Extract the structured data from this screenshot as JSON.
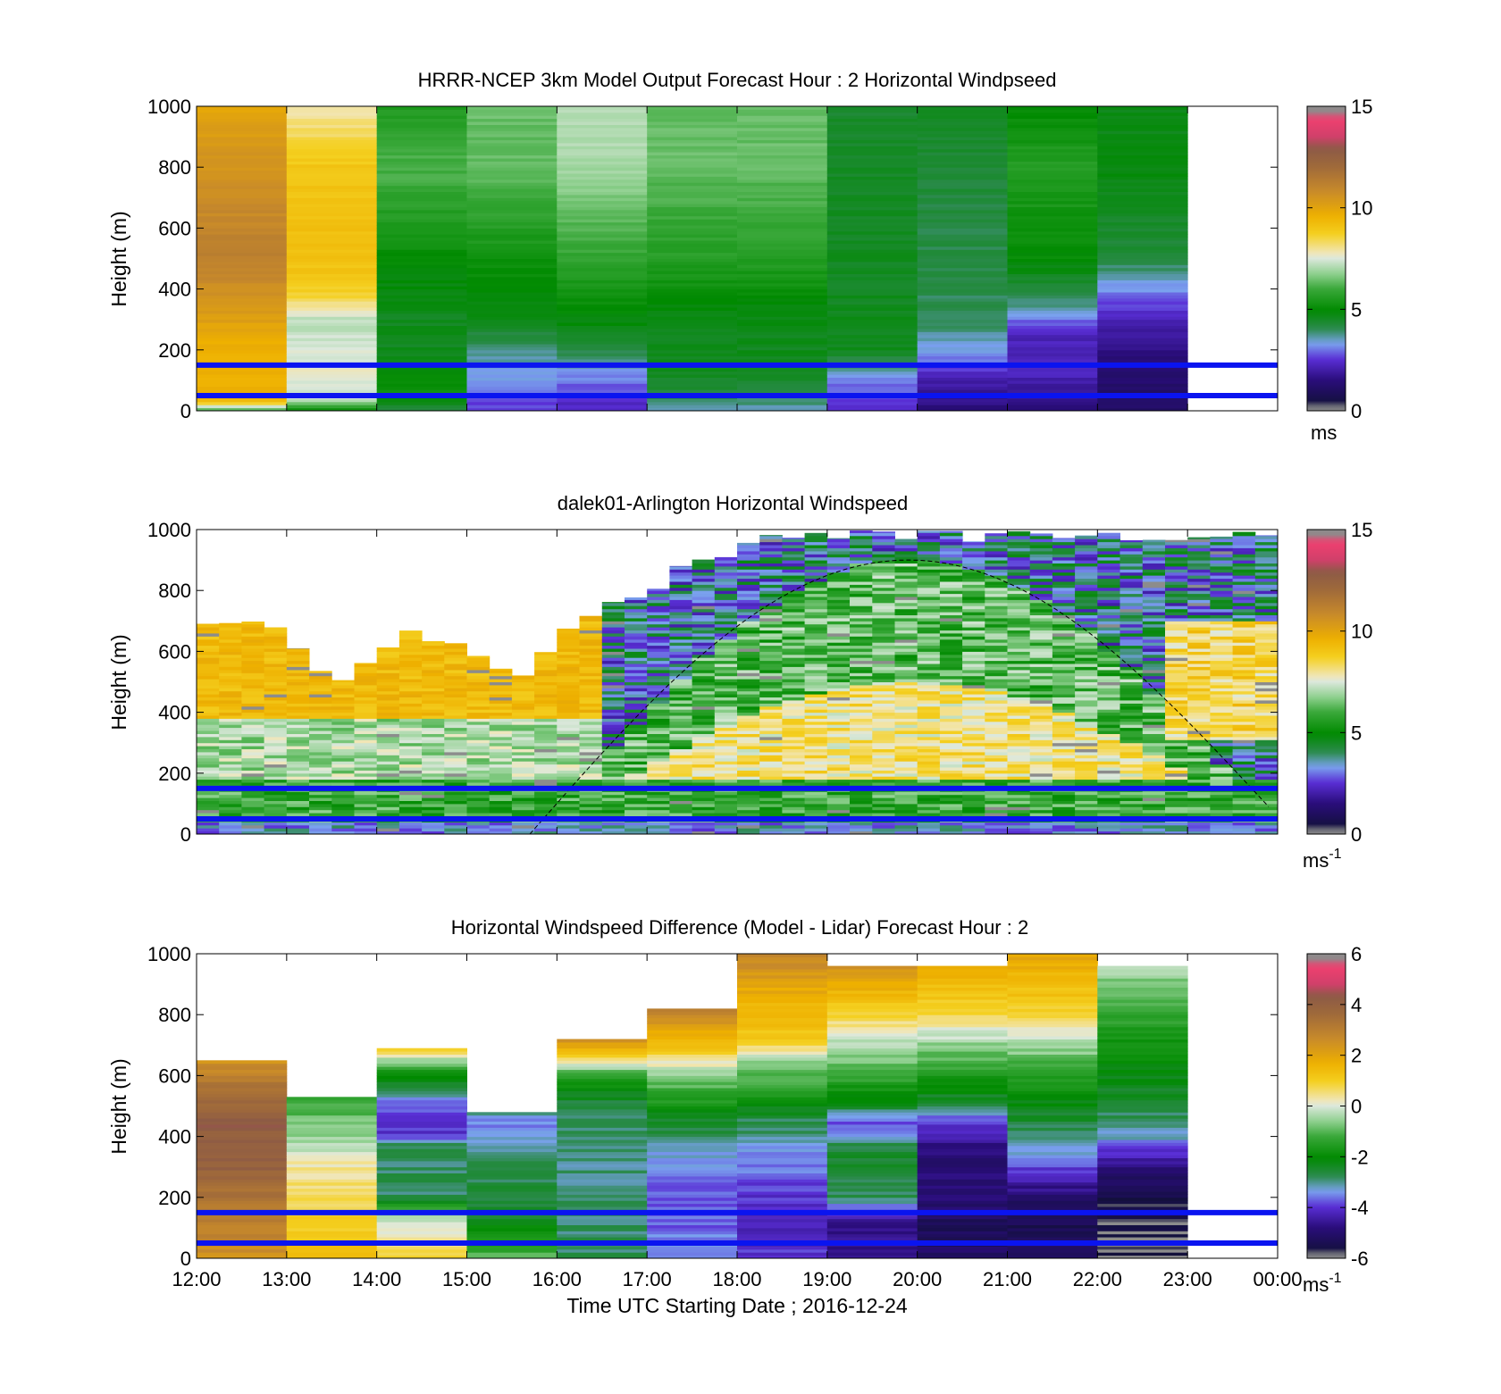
{
  "figure": {
    "xlabel": "Time UTC  Starting Date ; 2016-12-24",
    "x_tick_labels": [
      "12:00",
      "13:00",
      "14:00",
      "15:00",
      "16:00",
      "17:00",
      "18:00",
      "19:00",
      "20:00",
      "21:00",
      "22:00",
      "23:00",
      "00:00"
    ]
  },
  "colors": {
    "reference_lines": "#0a14f0",
    "missing": "#8c8c8c"
  },
  "chart_data": [
    {
      "type": "heatmap",
      "title": "HRRR-NCEP 3km Model Output   Forecast Hour : 2 Horizontal Windpseed",
      "ylabel": "Height (m)",
      "y_tick_labels": [
        "0",
        "200",
        "400",
        "600",
        "800",
        "1000"
      ],
      "ylim": [
        0,
        1000
      ],
      "xlim_hours": [
        12,
        24
      ],
      "colorbar": {
        "ticks": [
          "0",
          "5",
          "10",
          "15"
        ],
        "range": [
          0,
          15
        ],
        "unit": "ms"
      },
      "reference_heights_m": [
        150,
        50
      ],
      "columns": [
        {
          "t": 12,
          "profile": [
            [
              0,
              6
            ],
            [
              35,
              9.5
            ],
            [
              200,
              9.6
            ],
            [
              500,
              11.2
            ],
            [
              1000,
              10
            ]
          ]
        },
        {
          "t": 13,
          "profile": [
            [
              0,
              5
            ],
            [
              40,
              7.4
            ],
            [
              120,
              7.6
            ],
            [
              300,
              7.2
            ],
            [
              380,
              8.6
            ],
            [
              500,
              9.2
            ],
            [
              800,
              9
            ],
            [
              1000,
              7.8
            ]
          ]
        },
        {
          "t": 14,
          "profile": [
            [
              0,
              4
            ],
            [
              60,
              5.2
            ],
            [
              200,
              4.6
            ],
            [
              300,
              4.6
            ],
            [
              500,
              5
            ],
            [
              800,
              6.2
            ],
            [
              1000,
              5.5
            ]
          ]
        },
        {
          "t": 15,
          "profile": [
            [
              0,
              2.5
            ],
            [
              60,
              3
            ],
            [
              200,
              3.8
            ],
            [
              300,
              4.6
            ],
            [
              500,
              5.2
            ],
            [
              800,
              6.4
            ],
            [
              1000,
              6.4
            ]
          ]
        },
        {
          "t": 16,
          "profile": [
            [
              0,
              2.2
            ],
            [
              100,
              3
            ],
            [
              250,
              4.6
            ],
            [
              500,
              5.8
            ],
            [
              800,
              7
            ],
            [
              1000,
              7.2
            ]
          ]
        },
        {
          "t": 17,
          "profile": [
            [
              0,
              3.5
            ],
            [
              100,
              4.5
            ],
            [
              300,
              4.7
            ],
            [
              500,
              5.6
            ],
            [
              800,
              6.4
            ],
            [
              1000,
              6.4
            ]
          ]
        },
        {
          "t": 18,
          "profile": [
            [
              0,
              3.5
            ],
            [
              100,
              4.5
            ],
            [
              300,
              4.7
            ],
            [
              500,
              5.6
            ],
            [
              800,
              6.4
            ],
            [
              1000,
              6.4
            ]
          ]
        },
        {
          "t": 19,
          "profile": [
            [
              0,
              2.5
            ],
            [
              100,
              3
            ],
            [
              200,
              4.6
            ],
            [
              600,
              4.5
            ],
            [
              1000,
              4.4
            ]
          ]
        },
        {
          "t": 20,
          "profile": [
            [
              0,
              1.5
            ],
            [
              100,
              2
            ],
            [
              180,
              3.2
            ],
            [
              300,
              4
            ],
            [
              700,
              4.2
            ],
            [
              1000,
              4.5
            ]
          ]
        },
        {
          "t": 21,
          "profile": [
            [
              0,
              1.5
            ],
            [
              120,
              2.2
            ],
            [
              250,
              2.2
            ],
            [
              350,
              3.8
            ],
            [
              500,
              5
            ],
            [
              800,
              5.6
            ],
            [
              1000,
              5
            ]
          ]
        },
        {
          "t": 22,
          "profile": [
            [
              0,
              1.2
            ],
            [
              150,
              1.3
            ],
            [
              300,
              2.2
            ],
            [
              400,
              3.2
            ],
            [
              500,
              4.2
            ],
            [
              800,
              4.8
            ],
            [
              1000,
              4.6
            ]
          ]
        }
      ],
      "missing_from_hour": 23
    },
    {
      "type": "heatmap",
      "title": "dalek01-Arlington  Horizontal Windspeed",
      "ylabel": "Height (m)",
      "y_tick_labels": [
        "0",
        "200",
        "400",
        "600",
        "800",
        "1000"
      ],
      "ylim": [
        0,
        1000
      ],
      "xlim_hours": [
        12,
        24
      ],
      "colorbar": {
        "ticks": [
          "0",
          "5",
          "10",
          "15"
        ],
        "range": [
          0,
          15
        ],
        "unit": "ms",
        "unit_sup": "-1"
      },
      "reference_heights_m": [
        150,
        50
      ],
      "mixing_layer_curve": {
        "start_hour": 15.7,
        "peak_hour": 19.9,
        "end_hour": 23.9,
        "start_height_m": 0,
        "peak_height_m": 900,
        "end_height_m": 90
      },
      "top_of_data_m": [
        [
          12.0,
          700
        ],
        [
          12.3,
          730
        ],
        [
          12.6,
          720
        ],
        [
          13.0,
          650
        ],
        [
          13.3,
          560
        ],
        [
          13.6,
          520
        ],
        [
          14.0,
          650
        ],
        [
          14.3,
          700
        ],
        [
          14.6,
          650
        ],
        [
          14.9,
          620
        ],
        [
          15.2,
          560
        ],
        [
          15.5,
          540
        ],
        [
          15.8,
          620
        ],
        [
          16.1,
          720
        ],
        [
          16.4,
          760
        ],
        [
          16.7,
          800
        ],
        [
          17.0,
          840
        ],
        [
          17.3,
          900
        ],
        [
          17.6,
          930
        ],
        [
          18.0,
          980
        ],
        [
          18.5,
          1000
        ],
        [
          24.0,
          1000
        ]
      ]
    },
    {
      "type": "heatmap",
      "title": "Horizontal Windspeed Difference (Model - Lidar) Forecast Hour : 2",
      "ylabel": "Height (m)",
      "y_tick_labels": [
        "0",
        "200",
        "400",
        "600",
        "800",
        "1000"
      ],
      "ylim": [
        0,
        1000
      ],
      "xlim_hours": [
        12,
        24
      ],
      "colorbar": {
        "ticks": [
          "-6",
          "-4",
          "-2",
          "0",
          "2",
          "4",
          "6"
        ],
        "range": [
          -6,
          6
        ],
        "unit": "ms",
        "unit_sup": "-1"
      },
      "reference_heights_m": [
        150,
        50
      ],
      "columns": [
        {
          "t": 12,
          "top": 650,
          "profile": [
            [
              0,
              2.5
            ],
            [
              150,
              3
            ],
            [
              300,
              4
            ],
            [
              450,
              4.2
            ],
            [
              650,
              2.5
            ]
          ]
        },
        {
          "t": 13,
          "top": 530,
          "profile": [
            [
              0,
              1.5
            ],
            [
              200,
              0.6
            ],
            [
              300,
              0.4
            ],
            [
              400,
              -0.6
            ],
            [
              530,
              -1.2
            ]
          ]
        },
        {
          "t": 14,
          "top": 690,
          "profile": [
            [
              0,
              0.8
            ],
            [
              150,
              -0.4
            ],
            [
              200,
              -2.8
            ],
            [
              380,
              -2.8
            ],
            [
              400,
              -4
            ],
            [
              500,
              -3.8
            ],
            [
              560,
              -2.8
            ],
            [
              620,
              -1.6
            ],
            [
              690,
              1
            ]
          ]
        },
        {
          "t": 15,
          "top": 480,
          "profile": [
            [
              0,
              -1
            ],
            [
              150,
              -2.5
            ],
            [
              300,
              -2.8
            ],
            [
              450,
              -3.6
            ],
            [
              480,
              -3
            ]
          ]
        },
        {
          "t": 16,
          "top": 720,
          "profile": [
            [
              0,
              -2.8
            ],
            [
              300,
              -3
            ],
            [
              500,
              -2.8
            ],
            [
              600,
              -1.5
            ],
            [
              650,
              0.6
            ],
            [
              720,
              2.6
            ]
          ]
        },
        {
          "t": 17,
          "top": 820,
          "profile": [
            [
              0,
              -3.5
            ],
            [
              200,
              -3.8
            ],
            [
              350,
              -3.2
            ],
            [
              450,
              -2.5
            ],
            [
              600,
              -0.6
            ],
            [
              680,
              1
            ],
            [
              820,
              3
            ]
          ]
        },
        {
          "t": 18,
          "top": 1000,
          "profile": [
            [
              0,
              -4
            ],
            [
              150,
              -4.2
            ],
            [
              300,
              -3.6
            ],
            [
              450,
              -2.8
            ],
            [
              550,
              -1.5
            ],
            [
              650,
              -0.6
            ],
            [
              720,
              1.2
            ],
            [
              850,
              1.6
            ],
            [
              1000,
              2.8
            ]
          ]
        },
        {
          "t": 19,
          "top": 960,
          "profile": [
            [
              0,
              -4.5
            ],
            [
              120,
              -4.8
            ],
            [
              200,
              -2.8
            ],
            [
              350,
              -2.5
            ],
            [
              450,
              -3.8
            ],
            [
              500,
              -2.5
            ],
            [
              600,
              -1.2
            ],
            [
              700,
              -0.4
            ],
            [
              800,
              0.8
            ],
            [
              960,
              2.4
            ]
          ]
        },
        {
          "t": 20,
          "top": 960,
          "profile": [
            [
              0,
              -5
            ],
            [
              100,
              -5.4
            ],
            [
              200,
              -4.8
            ],
            [
              330,
              -5
            ],
            [
              450,
              -4
            ],
            [
              500,
              -2.8
            ],
            [
              600,
              -1.5
            ],
            [
              700,
              -0.6
            ],
            [
              800,
              0.8
            ],
            [
              960,
              1.8
            ]
          ]
        },
        {
          "t": 21,
          "top": 1000,
          "profile": [
            [
              0,
              -5
            ],
            [
              150,
              -5.5
            ],
            [
              200,
              -5
            ],
            [
              330,
              -3.5
            ],
            [
              450,
              -2.6
            ],
            [
              600,
              -1.5
            ],
            [
              700,
              -0.4
            ],
            [
              800,
              0.8
            ],
            [
              1000,
              2
            ]
          ]
        },
        {
          "t": 22,
          "top": 960,
          "profile": [
            [
              0,
              -5.8
            ],
            [
              200,
              -5.6
            ],
            [
              300,
              -4.8
            ],
            [
              400,
              -3.2
            ],
            [
              500,
              -2.6
            ],
            [
              700,
              -1.8
            ],
            [
              900,
              -0.8
            ],
            [
              960,
              -0.3
            ]
          ]
        }
      ],
      "missing_from_hour": 23
    }
  ]
}
